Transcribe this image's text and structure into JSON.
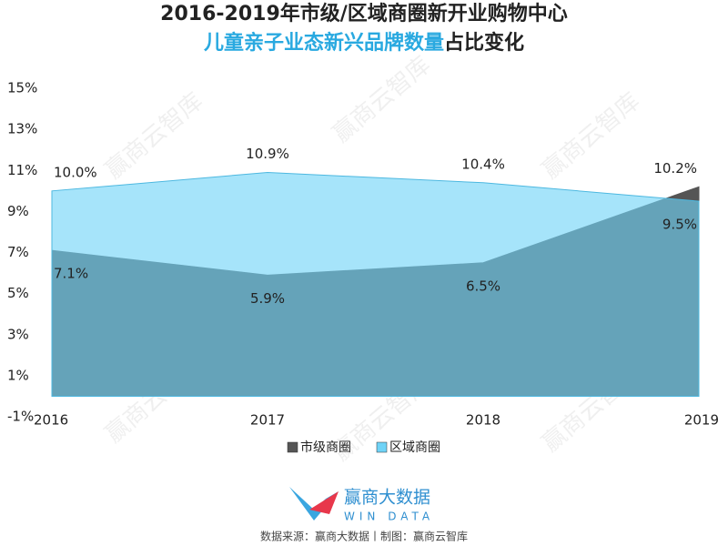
{
  "chart_data": {
    "type": "area",
    "title": "2016-2019年市级/区域商圈新开业购物中心",
    "subtitle_highlight": "儿童亲子业态新兴品牌数量",
    "subtitle_rest": "占比变化",
    "categories": [
      "2016",
      "2017",
      "2018",
      "2019"
    ],
    "series": [
      {
        "name": "市级商圈",
        "color": "#555555",
        "values": [
          7.1,
          5.9,
          6.5,
          10.2
        ],
        "value_labels": [
          "7.1%",
          "5.9%",
          "6.5%",
          "10.2%"
        ]
      },
      {
        "name": "区域商圈",
        "color": "#6fd3f7",
        "values": [
          10.0,
          10.9,
          10.4,
          9.5
        ],
        "value_labels": [
          "10.0%",
          "10.9%",
          "10.4%",
          "9.5%"
        ]
      }
    ],
    "ylim": [
      -1,
      15
    ],
    "yticks": [
      {
        "value": -1,
        "label": "-1%"
      },
      {
        "value": 1,
        "label": "1%"
      },
      {
        "value": 3,
        "label": "3%"
      },
      {
        "value": 5,
        "label": "5%"
      },
      {
        "value": 7,
        "label": "7%"
      },
      {
        "value": 9,
        "label": "9%"
      },
      {
        "value": 11,
        "label": "11%"
      },
      {
        "value": 13,
        "label": "13%"
      },
      {
        "value": 15,
        "label": "15%"
      }
    ],
    "legend": "bottom",
    "watermark": "赢商云智库",
    "logo_name": "赢商大数据",
    "logo_sub": "WIN DATA",
    "source": "数据来源：赢商大数据丨制图：赢商云智库"
  }
}
